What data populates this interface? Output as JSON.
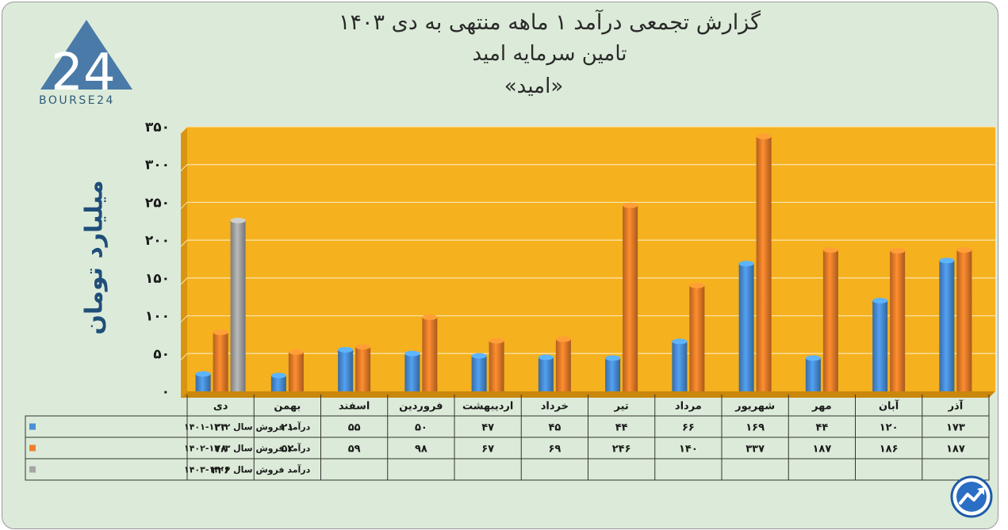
{
  "header": {
    "title_line1": "گزارش تجمعی درآمد ۱ ماهه منتهی به دی ۱۴۰۳",
    "title_line2": "تامین سرمایه امید",
    "title_line3": "«امید»"
  },
  "logo": {
    "text": "BOURSE24",
    "mark": "24"
  },
  "colors": {
    "plot_bg": "#f5b11e",
    "page_bg": "#dcebd9",
    "series1": "#4a90d9",
    "series2": "#f07f2a",
    "series3": "#a6a6a6"
  },
  "chart_data": {
    "type": "bar",
    "ylabel": "میلیارد تومان",
    "ylim": [
      0,
      350
    ],
    "yticks": [
      0,
      50,
      100,
      150,
      200,
      250,
      300,
      350
    ],
    "ytick_labels": [
      "۰",
      "۵۰",
      "۱۰۰",
      "۱۵۰",
      "۲۰۰",
      "۲۵۰",
      "۳۰۰",
      "۳۵۰"
    ],
    "grid": true,
    "categories": [
      "آذر",
      "آبان",
      "مهر",
      "شهریور",
      "مرداد",
      "تیر",
      "خرداد",
      "اردیبهشت",
      "فروردین",
      "اسفند",
      "بهمن",
      "دی"
    ],
    "series": [
      {
        "name": "درآمد فروش سال ۱۴۰۲-۱۴۰۱",
        "values": [
          173,
          120,
          44,
          169,
          66,
          44,
          45,
          47,
          50,
          55,
          21,
          23
        ],
        "labels": [
          "۱۷۳",
          "۱۲۰",
          "۴۴",
          "۱۶۹",
          "۶۶",
          "۴۴",
          "۴۵",
          "۴۷",
          "۵۰",
          "۵۵",
          "۲۱",
          "۲۳"
        ]
      },
      {
        "name": "درآمد فروش سال ۱۴۰۳-۱۴۰۲",
        "values": [
          187,
          186,
          187,
          337,
          140,
          246,
          69,
          67,
          98,
          59,
          52,
          78
        ],
        "labels": [
          "۱۸۷",
          "۱۸۶",
          "۱۸۷",
          "۳۳۷",
          "۱۴۰",
          "۲۴۶",
          "۶۹",
          "۶۷",
          "۹۸",
          "۵۹",
          "۵۲",
          "۷۸"
        ]
      },
      {
        "name": "درآمد فروش سال ۱۴۰۴-۱۴۰۳",
        "values": [
          null,
          null,
          null,
          null,
          null,
          null,
          null,
          null,
          null,
          null,
          null,
          226
        ],
        "labels": [
          "",
          "",
          "",
          "",
          "",
          "",
          "",
          "",
          "",
          "",
          "",
          "۲۲۶"
        ]
      }
    ]
  }
}
